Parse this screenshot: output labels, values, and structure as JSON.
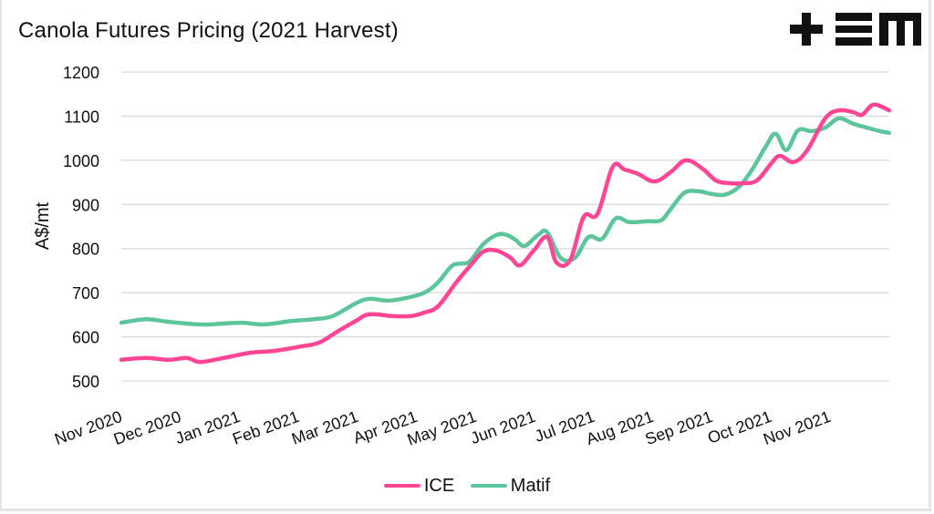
{
  "header": {
    "title": "Canola Futures Pricing (2021 Harvest)",
    "logo_text": "+EM"
  },
  "chart_data": {
    "type": "line",
    "title": "Canola Futures Pricing (2021 Harvest)",
    "xlabel": "",
    "ylabel": "A$/mt",
    "ylim": [
      500,
      1200
    ],
    "yticks": [
      500,
      600,
      700,
      800,
      900,
      1000,
      1100,
      1200
    ],
    "xlim": [
      0,
      13.0
    ],
    "x_unit": "months since Nov 2020",
    "categories": [
      "Nov 2020",
      "Dec 2020",
      "Jan 2021",
      "Feb 2021",
      "Mar 2021",
      "Apr 2021",
      "May 2021",
      "Jun 2021",
      "Jul 2021",
      "Aug 2021",
      "Sep 2021",
      "Oct 2021",
      "Nov 2021"
    ],
    "grid": "horizontal",
    "legend_position": "bottom",
    "series": [
      {
        "name": "ICE",
        "color": "#ff4593",
        "x": [
          0,
          0.42,
          0.8,
          1.11,
          1.34,
          1.73,
          2.19,
          2.58,
          3.04,
          3.35,
          3.66,
          3.97,
          4.2,
          4.59,
          4.9,
          5.13,
          5.36,
          5.67,
          5.9,
          6.13,
          6.36,
          6.59,
          6.75,
          6.98,
          7.21,
          7.37,
          7.6,
          7.83,
          8.06,
          8.32,
          8.52,
          8.75,
          9.03,
          9.3,
          9.56,
          9.84,
          10.07,
          10.3,
          10.53,
          10.76,
          11.0,
          11.15,
          11.38,
          11.61,
          11.92,
          12.15,
          12.39,
          12.54,
          12.74,
          13.0
        ],
        "values": [
          548,
          552,
          548,
          552,
          543,
          552,
          564,
          568,
          578,
          587,
          612,
          636,
          651,
          647,
          647,
          655,
          669,
          723,
          760,
          793,
          795,
          779,
          762,
          795,
          826,
          768,
          774,
          872,
          878,
          985,
          979,
          969,
          952,
          973,
          1000,
          981,
          954,
          948,
          948,
          954,
          992,
          1010,
          996,
          1022,
          1095,
          1113,
          1109,
          1103,
          1126,
          1113
        ]
      },
      {
        "name": "Matif",
        "color": "#5cc59b",
        "x": [
          0,
          0.42,
          0.8,
          1.34,
          1.73,
          2.04,
          2.35,
          2.58,
          2.89,
          3.27,
          3.58,
          3.97,
          4.2,
          4.51,
          4.82,
          5.13,
          5.36,
          5.59,
          5.75,
          5.9,
          6.13,
          6.36,
          6.52,
          6.67,
          6.83,
          7.06,
          7.21,
          7.44,
          7.68,
          7.91,
          8.14,
          8.37,
          8.6,
          8.91,
          9.14,
          9.3,
          9.53,
          9.76,
          9.99,
          10.22,
          10.46,
          10.69,
          10.92,
          11.08,
          11.26,
          11.46,
          11.69,
          11.92,
          12.15,
          12.39,
          12.62,
          12.85,
          13.0
        ],
        "values": [
          632,
          640,
          634,
          628,
          630,
          632,
          628,
          630,
          636,
          640,
          647,
          676,
          686,
          682,
          688,
          700,
          723,
          760,
          766,
          771,
          810,
          831,
          831,
          820,
          806,
          831,
          837,
          779,
          779,
          826,
          822,
          868,
          860,
          862,
          864,
          889,
          926,
          930,
          924,
          922,
          940,
          981,
          1033,
          1060,
          1023,
          1068,
          1066,
          1074,
          1095,
          1083,
          1074,
          1066,
          1062
        ]
      }
    ]
  },
  "legend": [
    {
      "label": "ICE",
      "color": "#ff4593"
    },
    {
      "label": "Matif",
      "color": "#5cc59b"
    }
  ]
}
